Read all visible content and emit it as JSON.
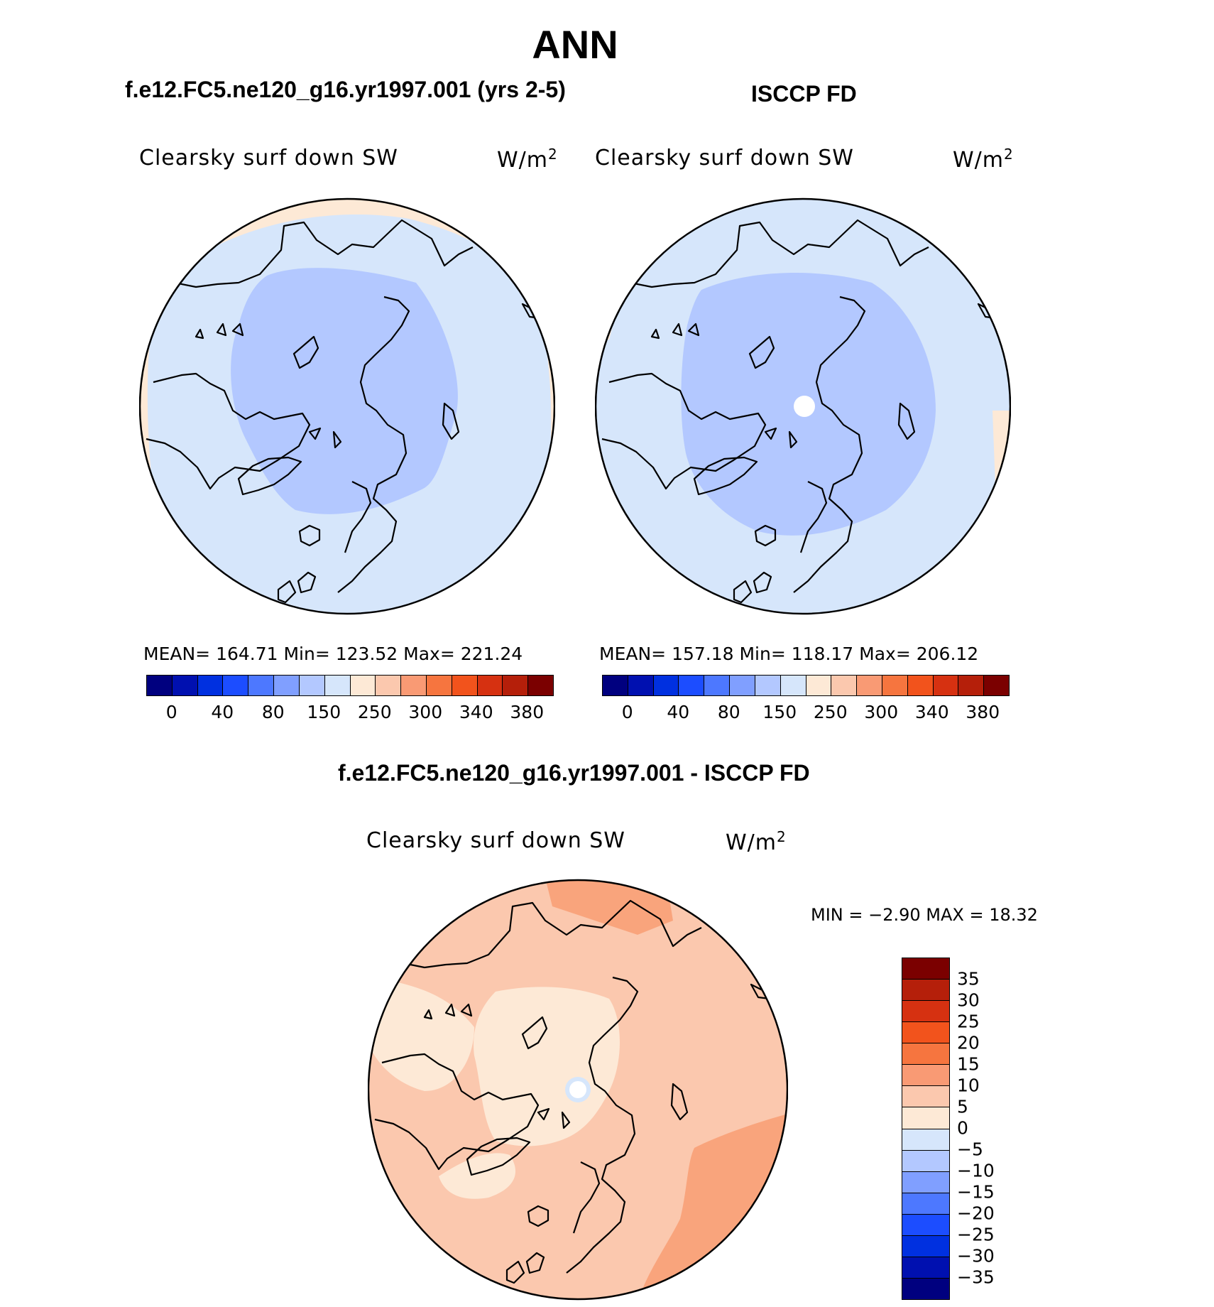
{
  "title": "ANN",
  "panels": {
    "model": {
      "subtitle": "f.e12.FC5.ne120_g16.yr1997.001 (yrs 2-5)",
      "variable": "Clearsky surf down SW",
      "units_base": "W/m",
      "units_exp": "2",
      "stats_text": "MEAN=  164.71    Min=  123.52    Max=  221.24"
    },
    "obs": {
      "subtitle": "ISCCP FD",
      "variable": "Clearsky surf down SW",
      "units_base": "W/m",
      "units_exp": "2",
      "stats_text": "MEAN=  157.18    Min=  118.17    Max=  206.12"
    },
    "diff": {
      "subtitle": "f.e12.FC5.ne120_g16.yr1997.001 - ISCCP FD",
      "variable": "Clearsky surf down SW",
      "units_base": "W/m",
      "units_exp": "2",
      "minmax_text": "MIN =    −2.90 MAX =    18.32"
    }
  },
  "colorbar_top": {
    "colors": [
      "#00007f",
      "#0010b0",
      "#0030e0",
      "#1c4dff",
      "#4d78ff",
      "#809fff",
      "#b3c8ff",
      "#d6e6fb",
      "#fde9d6",
      "#fbc8ae",
      "#f99a74",
      "#f6753f",
      "#f2531c",
      "#d63111",
      "#b51f0a",
      "#7b0000"
    ],
    "tick_labels": [
      "0",
      "40",
      "80",
      "150",
      "250",
      "300",
      "340",
      "380"
    ]
  },
  "colorbar_diff": {
    "colors": [
      "#7b0000",
      "#b51f0a",
      "#d63111",
      "#f2531c",
      "#f6753f",
      "#f99a74",
      "#fbc8ae",
      "#fde9d6",
      "#d6e6fb",
      "#b3c8ff",
      "#809fff",
      "#4d78ff",
      "#1c4dff",
      "#0030e0",
      "#0010b0",
      "#00007f"
    ],
    "tick_labels": [
      "35",
      "30",
      "25",
      "20",
      "15",
      "10",
      "5",
      "0",
      "−5",
      "−10",
      "−15",
      "−20",
      "−25",
      "−30",
      "−35"
    ]
  },
  "map_colors": {
    "light_blue": "#d6e6fb",
    "mid_blue": "#b3c8ff",
    "peach": "#fde9d6",
    "salmon_light": "#fbc8ae",
    "salmon": "#f9a47c",
    "missing": "#ffffff"
  }
}
